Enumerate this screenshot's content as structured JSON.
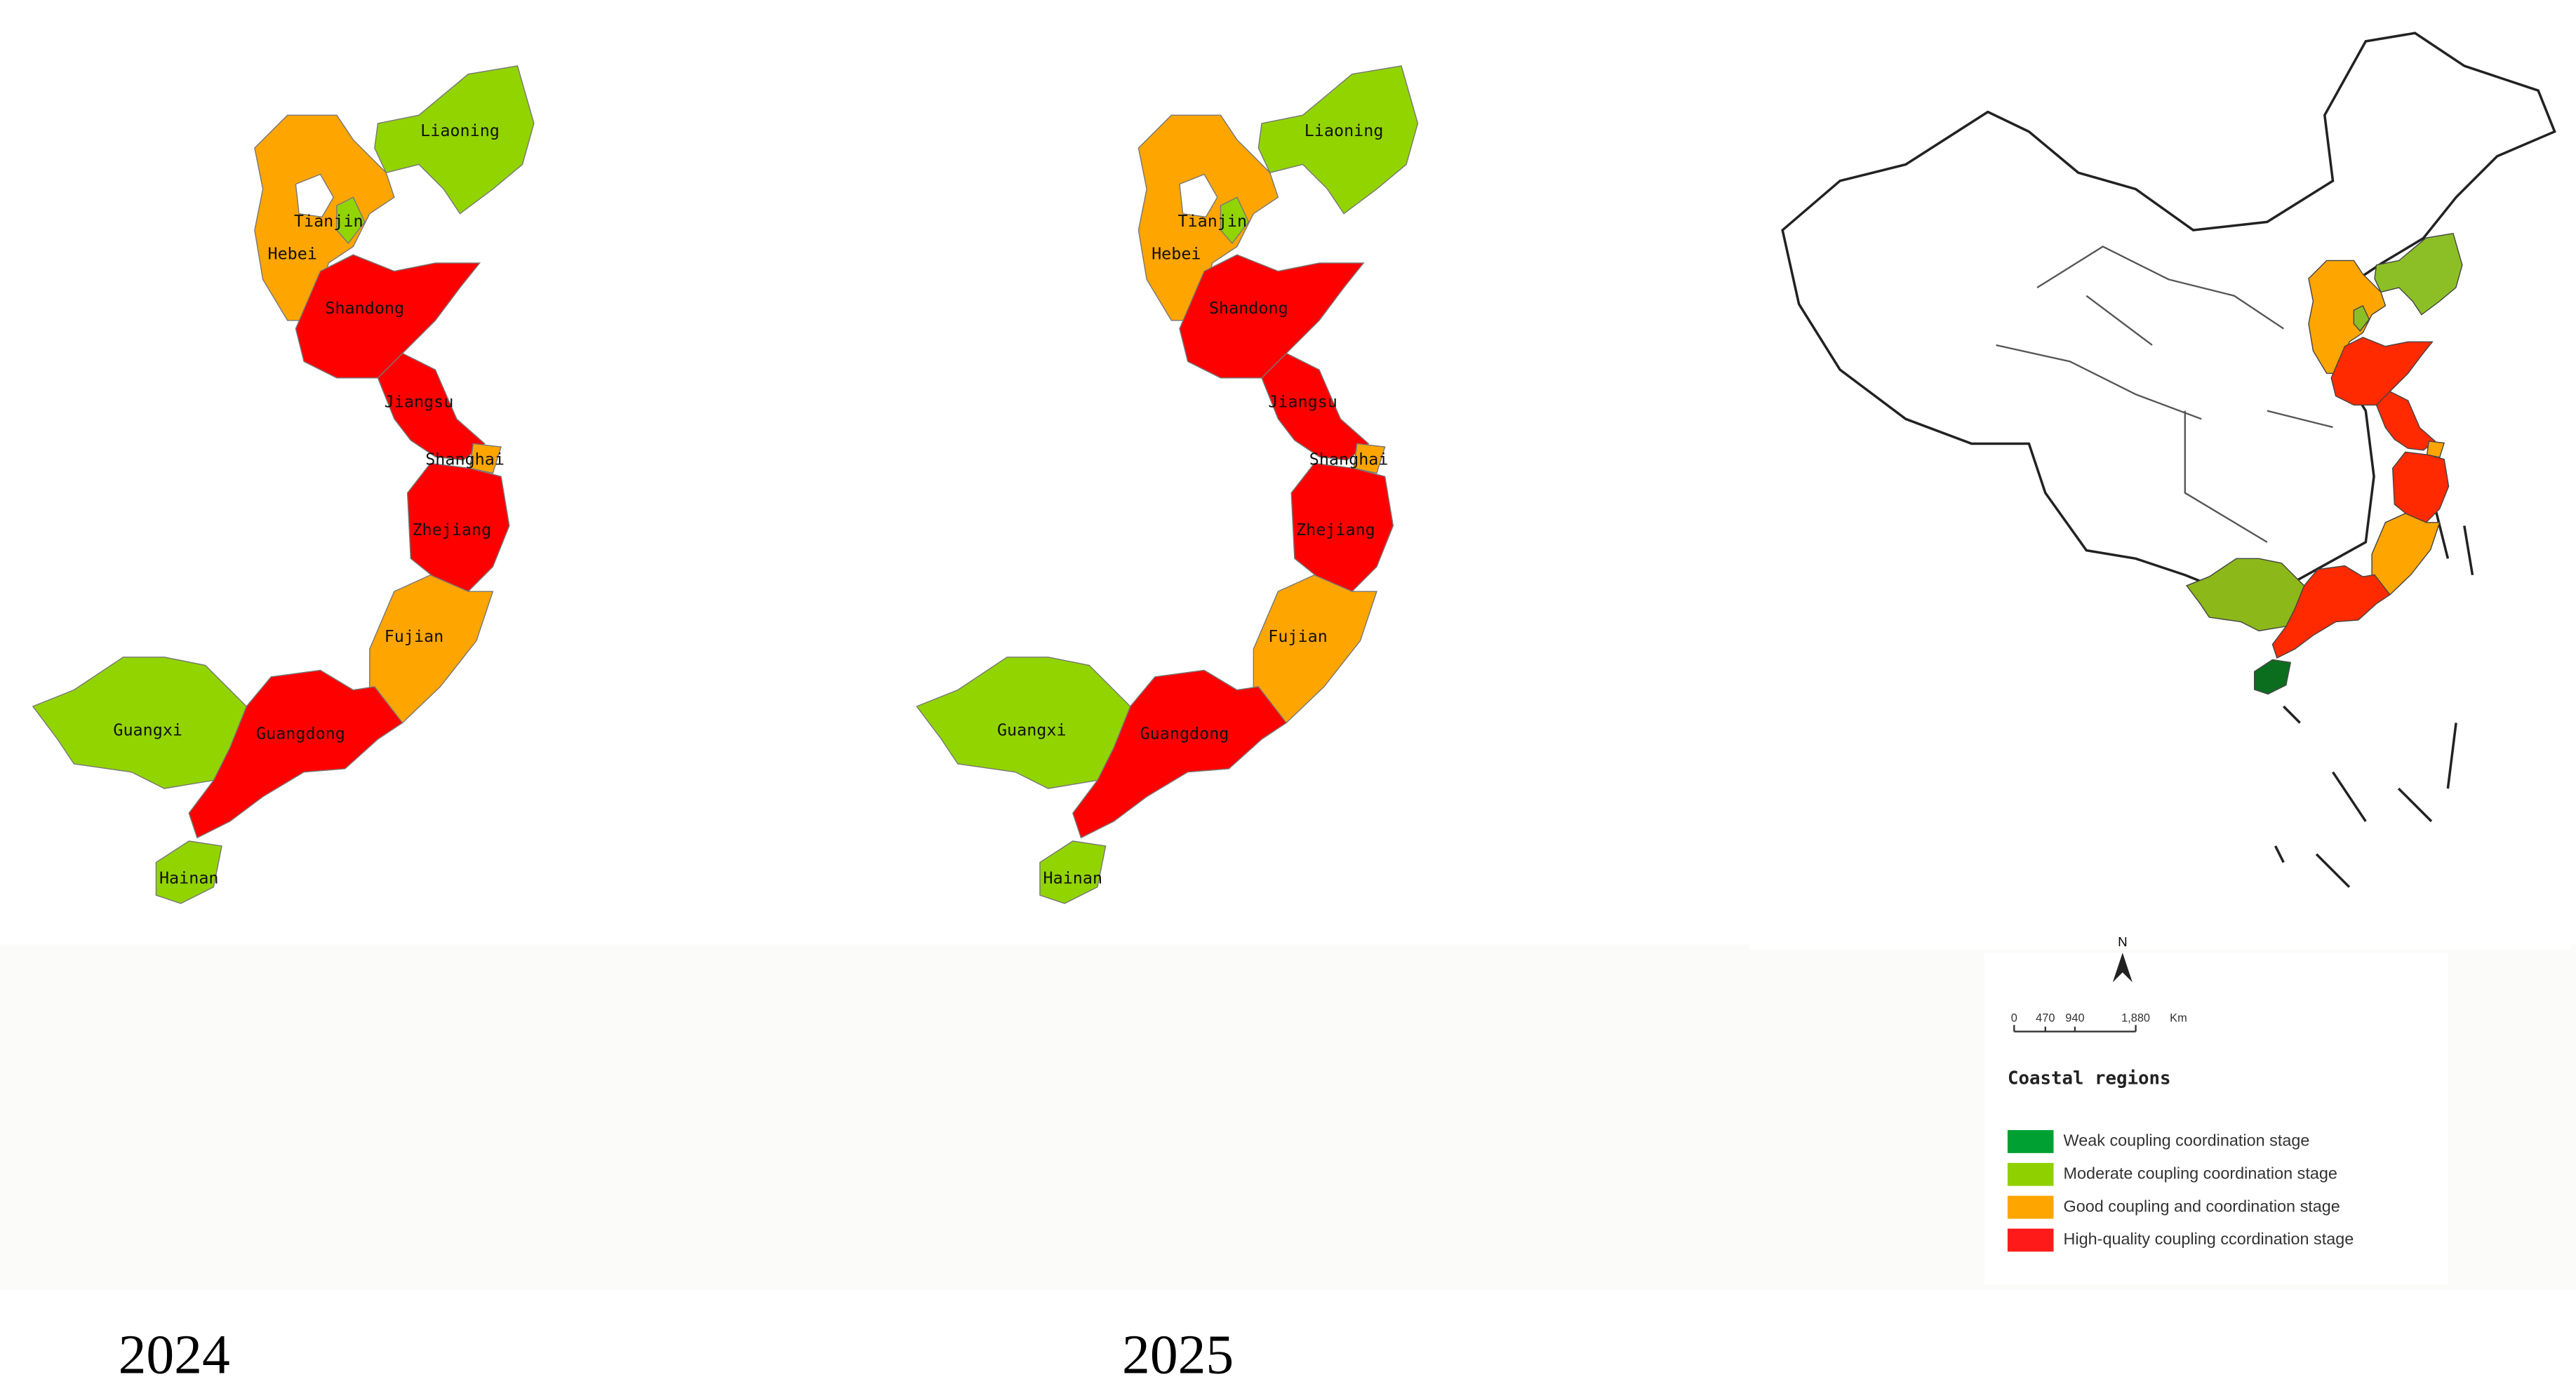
{
  "panels": [
    {
      "year": "2024",
      "regions": [
        {
          "name": "Liaoning",
          "color": "#92d400"
        },
        {
          "name": "Hebei",
          "color": "#ffa500"
        },
        {
          "name": "Tianjin",
          "color": "#92d400"
        },
        {
          "name": "Shandong",
          "color": "#ff0000"
        },
        {
          "name": "Jiangsu",
          "color": "#ff0000"
        },
        {
          "name": "Shanghai",
          "color": "#ffa500"
        },
        {
          "name": "Zhejiang",
          "color": "#ff0000"
        },
        {
          "name": "Fujian",
          "color": "#ffa500"
        },
        {
          "name": "Guangdong",
          "color": "#ff0000"
        },
        {
          "name": "Guangxi",
          "color": "#92d400"
        },
        {
          "name": "Hainan",
          "color": "#92d400"
        }
      ]
    },
    {
      "year": "2025",
      "regions": [
        {
          "name": "Liaoning",
          "color": "#92d400"
        },
        {
          "name": "Hebei",
          "color": "#ffa500"
        },
        {
          "name": "Tianjin",
          "color": "#92d400"
        },
        {
          "name": "Shandong",
          "color": "#ff0000"
        },
        {
          "name": "Jiangsu",
          "color": "#ff0000"
        },
        {
          "name": "Shanghai",
          "color": "#ffa500"
        },
        {
          "name": "Zhejiang",
          "color": "#ff0000"
        },
        {
          "name": "Fujian",
          "color": "#ffa500"
        },
        {
          "name": "Guangdong",
          "color": "#ff0000"
        },
        {
          "name": "Guangxi",
          "color": "#92d400"
        },
        {
          "name": "Hainan",
          "color": "#92d400"
        }
      ]
    }
  ],
  "overview_map": {
    "region_colors": [
      "#8cbf26",
      "#ffa500",
      "#8cbf26",
      "#ff2a00",
      "#ff2a00",
      "#ffa500",
      "#ff2a00",
      "#ffa500",
      "#ff2a00",
      "#8cb81a",
      "#0b6e1e"
    ]
  },
  "north": "N",
  "scale_bar": {
    "labels": [
      "0",
      "470",
      "940",
      "1,880"
    ],
    "unit": "Km"
  },
  "legend": {
    "title": "Coastal regions",
    "items": [
      {
        "label": "Weak coupling coordination stage",
        "color": "#00a032"
      },
      {
        "label": "Moderate coupling coordination stage",
        "color": "#8fd000"
      },
      {
        "label": "Good coupling and coordination stage",
        "color": "#ffa500"
      },
      {
        "label": "High-quality coupling ccordination stage",
        "color": "#ff1a1a"
      }
    ]
  }
}
